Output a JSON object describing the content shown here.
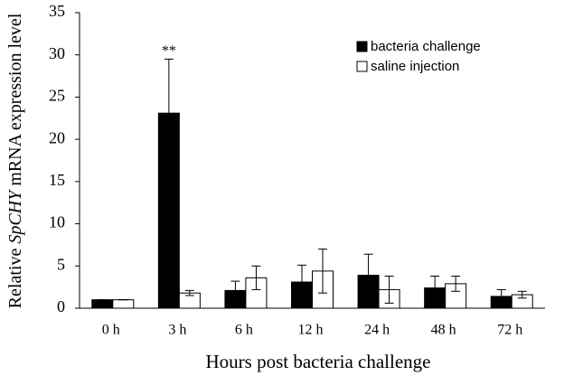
{
  "chart_data": {
    "type": "bar",
    "x_label": "Hours post bacteria challenge",
    "y_label": [
      "Relative ",
      "SpCHY",
      " mRNA expression level"
    ],
    "categories": [
      "0 h",
      "3 h",
      "6 h",
      "12 h",
      "24 h",
      "48 h",
      "72 h"
    ],
    "series": [
      {
        "name": "bacteria challenge",
        "color": "#000000",
        "values": [
          1,
          23.1,
          2.1,
          3.1,
          3.9,
          2.4,
          1.4
        ],
        "errors": [
          0,
          6.4,
          1.1,
          2.0,
          2.5,
          1.4,
          0.8
        ]
      },
      {
        "name": "saline injection",
        "color": "#ffffff",
        "values": [
          1,
          1.8,
          3.6,
          4.4,
          2.2,
          2.9,
          1.6
        ],
        "errors": [
          0,
          0.3,
          1.4,
          2.6,
          1.6,
          0.9,
          0.4
        ]
      }
    ],
    "annotations": [
      {
        "text": "**",
        "category": 1,
        "series": 0
      }
    ],
    "ylim": [
      0,
      35
    ],
    "yticks": [
      0,
      5,
      10,
      15,
      20,
      25,
      30,
      35
    ]
  }
}
